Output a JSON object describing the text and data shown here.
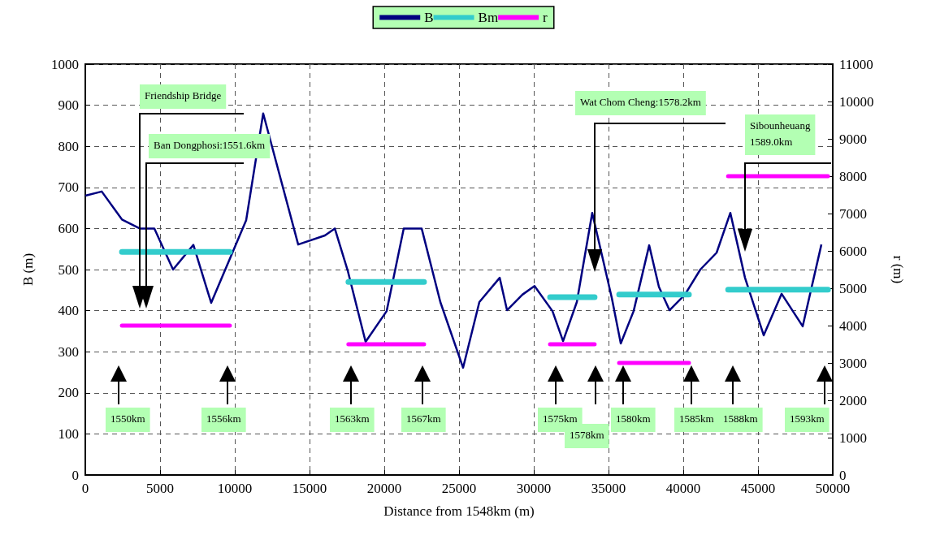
{
  "chart_data": {
    "type": "line",
    "xlabel": "Distance from 1548km (m)",
    "ylabel": "B (m)",
    "y2label": "r (m)",
    "xlim": [
      0,
      50000
    ],
    "xticks": [
      0,
      5000,
      10000,
      15000,
      20000,
      25000,
      30000,
      35000,
      40000,
      45000,
      50000
    ],
    "ylim": [
      0,
      1000
    ],
    "yticks": [
      0,
      100,
      200,
      300,
      400,
      500,
      600,
      700,
      800,
      900,
      1000
    ],
    "y2lim": [
      0,
      11000
    ],
    "y2ticks": [
      0,
      1000,
      2000,
      3000,
      4000,
      5000,
      6000,
      7000,
      8000,
      9000,
      10000,
      11000
    ],
    "grid": true,
    "legend": "top",
    "marker": "none",
    "line_style": "solid",
    "series": [
      {
        "name": "B",
        "color": "#000080",
        "x": [
          0,
          1100,
          2450,
          3640,
          4620,
          5870,
          7230,
          8420,
          10760,
          11900,
          14240,
          16030,
          16690,
          17550,
          18750,
          20160,
          21300,
          22500,
          23750,
          25270,
          26360,
          27720,
          28210,
          29240,
          30050,
          31250,
          31960,
          32880,
          33910,
          35220,
          35820,
          36680,
          37720,
          38370,
          39080,
          40110,
          41140,
          42230,
          43150,
          44130,
          45380,
          46580,
          47990,
          49240
        ],
        "values": [
          680,
          690,
          622,
          600,
          600,
          500,
          560,
          419,
          620,
          880,
          561,
          583,
          600,
          498,
          324,
          399,
          600,
          600,
          421,
          261,
          421,
          480,
          401,
          439,
          460,
          399,
          326,
          421,
          638,
          431,
          320,
          399,
          559,
          458,
          401,
          439,
          500,
          541,
          638,
          480,
          340,
          441,
          362,
          561
        ]
      },
      {
        "name": "Bm",
        "color": "#33cccc",
        "x": [
          2450,
          9670,
          null,
          17600,
          22660,
          null,
          31090,
          34070,
          null,
          35710,
          40380,
          null,
          43000,
          49680
        ],
        "values": [
          543,
          543,
          null,
          470,
          470,
          null,
          433,
          433,
          null,
          439,
          439,
          null,
          451,
          451
        ]
      },
      {
        "name": "r",
        "color": "#ff00ff",
        "axis": "y2",
        "x": [
          2450,
          9670,
          null,
          17600,
          22660,
          null,
          31090,
          34070,
          null,
          35710,
          40380,
          null,
          43000,
          49680
        ],
        "values": [
          4000,
          4000,
          null,
          3500,
          3500,
          null,
          3500,
          3500,
          null,
          3000,
          3000,
          null,
          8000,
          8000
        ]
      }
    ],
    "annotations": [
      "Friendship Bridge",
      "Ban Dongphosi:1551.6km",
      "Wat Chom Cheng:1578.2km",
      "Sibounheuang\n1589.0km",
      "1550km",
      "1556km",
      "1563km",
      "1567km",
      "1575km",
      "1578km",
      "1580km",
      "1585km",
      "1588km",
      "1593km"
    ]
  }
}
